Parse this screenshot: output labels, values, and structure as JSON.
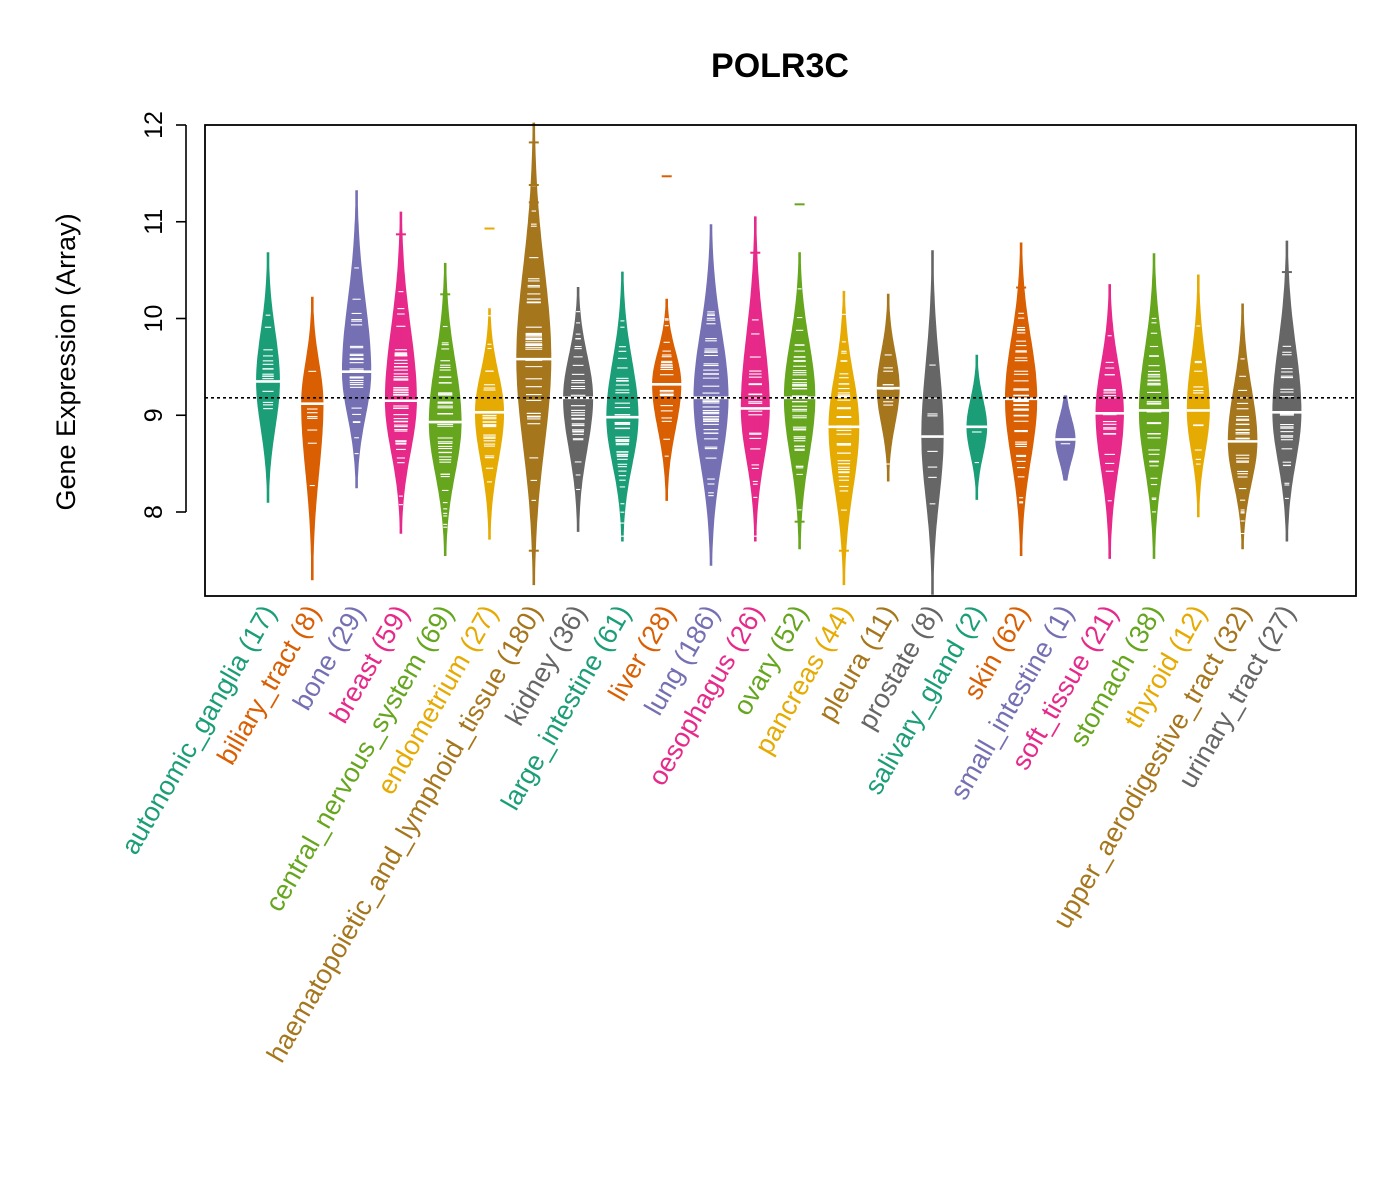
{
  "chart_data": {
    "type": "violin",
    "title": "POLR3C",
    "xlabel": "",
    "ylabel": "Gene Expression (Array)",
    "yticks": [
      8,
      9,
      10,
      11,
      12
    ],
    "ylim": [
      7.15,
      12.02
    ],
    "reference_line": 9.18,
    "grid": false,
    "categories": [
      {
        "name": "autonomic_ganglia",
        "n": 17,
        "label": "autonomic_ganglia (17)",
        "color": "#1B9E77",
        "min": 8.1,
        "max": 10.68,
        "median": 9.35,
        "outliers": []
      },
      {
        "name": "biliary_tract",
        "n": 8,
        "label": "biliary_tract (8)",
        "color": "#D95F02",
        "min": 7.3,
        "max": 10.22,
        "median": 9.12,
        "outliers": []
      },
      {
        "name": "bone",
        "n": 29,
        "label": "bone (29)",
        "color": "#7570B3",
        "min": 8.25,
        "max": 11.32,
        "median": 9.45,
        "outliers": []
      },
      {
        "name": "breast",
        "n": 59,
        "label": "breast (59)",
        "color": "#E7298A",
        "min": 7.78,
        "max": 11.1,
        "median": 9.15,
        "outliers": [
          10.87
        ]
      },
      {
        "name": "central_nervous_system",
        "n": 69,
        "label": "central_nervous_system (69)",
        "color": "#66A61E",
        "min": 7.55,
        "max": 10.57,
        "median": 8.93,
        "outliers": [
          10.25
        ]
      },
      {
        "name": "endometrium",
        "n": 27,
        "label": "endometrium (27)",
        "color": "#E6AB02",
        "min": 7.72,
        "max": 10.1,
        "median": 9.03,
        "outliers": [
          10.93
        ]
      },
      {
        "name": "haematopoietic_and_lymphoid_tissue",
        "n": 180,
        "label": "haematopoietic_and_lymphoid_tissue (180)",
        "color": "#A6761D",
        "min": 7.25,
        "max": 12.02,
        "median": 9.58,
        "outliers": [
          11.82,
          11.38,
          11.2,
          7.6
        ]
      },
      {
        "name": "kidney",
        "n": 36,
        "label": "kidney (36)",
        "color": "#666666",
        "min": 7.8,
        "max": 10.32,
        "median": 9.18,
        "outliers": []
      },
      {
        "name": "large_intestine",
        "n": 61,
        "label": "large_intestine (61)",
        "color": "#1B9E77",
        "min": 7.7,
        "max": 10.48,
        "median": 8.98,
        "outliers": []
      },
      {
        "name": "liver",
        "n": 28,
        "label": "liver (28)",
        "color": "#D95F02",
        "min": 8.12,
        "max": 10.2,
        "median": 9.32,
        "outliers": [
          11.47
        ]
      },
      {
        "name": "lung",
        "n": 186,
        "label": "lung (186)",
        "color": "#7570B3",
        "min": 7.45,
        "max": 10.97,
        "median": 9.18,
        "outliers": []
      },
      {
        "name": "oesophagus",
        "n": 26,
        "label": "oesophagus (26)",
        "color": "#E7298A",
        "min": 7.7,
        "max": 11.05,
        "median": 9.07,
        "outliers": [
          10.68
        ]
      },
      {
        "name": "ovary",
        "n": 52,
        "label": "ovary (52)",
        "color": "#66A61E",
        "min": 7.62,
        "max": 10.68,
        "median": 9.18,
        "outliers": [
          11.18,
          7.9
        ]
      },
      {
        "name": "pancreas",
        "n": 44,
        "label": "pancreas (44)",
        "color": "#E6AB02",
        "min": 7.25,
        "max": 10.28,
        "median": 8.88,
        "outliers": [
          7.6
        ]
      },
      {
        "name": "pleura",
        "n": 11,
        "label": "pleura (11)",
        "color": "#A6761D",
        "min": 8.32,
        "max": 10.25,
        "median": 9.28,
        "outliers": []
      },
      {
        "name": "prostate",
        "n": 8,
        "label": "prostate (8)",
        "color": "#666666",
        "min": 7.15,
        "max": 10.7,
        "median": 8.78,
        "outliers": []
      },
      {
        "name": "salivary_gland",
        "n": 2,
        "label": "salivary_gland (2)",
        "color": "#1B9E77",
        "min": 8.13,
        "max": 9.62,
        "median": 8.88,
        "outliers": []
      },
      {
        "name": "skin",
        "n": 62,
        "label": "skin (62)",
        "color": "#D95F02",
        "min": 7.55,
        "max": 10.78,
        "median": 9.17,
        "outliers": [
          10.32
        ]
      },
      {
        "name": "small_intestine",
        "n": 1,
        "label": "small_intestine (1)",
        "color": "#7570B3",
        "min": 8.33,
        "max": 9.2,
        "median": 8.75,
        "outliers": []
      },
      {
        "name": "soft_tissue",
        "n": 21,
        "label": "soft_tissue (21)",
        "color": "#E7298A",
        "min": 7.52,
        "max": 10.35,
        "median": 9.02,
        "outliers": []
      },
      {
        "name": "stomach",
        "n": 38,
        "label": "stomach (38)",
        "color": "#66A61E",
        "min": 7.52,
        "max": 10.67,
        "median": 9.05,
        "outliers": []
      },
      {
        "name": "thyroid",
        "n": 12,
        "label": "thyroid (12)",
        "color": "#E6AB02",
        "min": 7.95,
        "max": 10.45,
        "median": 9.05,
        "outliers": []
      },
      {
        "name": "upper_aerodigestive_tract",
        "n": 32,
        "label": "upper_aerodigestive_tract (32)",
        "color": "#A6761D",
        "min": 7.62,
        "max": 10.15,
        "median": 8.73,
        "outliers": []
      },
      {
        "name": "urinary_tract",
        "n": 27,
        "label": "urinary_tract (27)",
        "color": "#666666",
        "min": 7.7,
        "max": 10.8,
        "median": 9.03,
        "outliers": [
          10.48
        ]
      }
    ]
  }
}
